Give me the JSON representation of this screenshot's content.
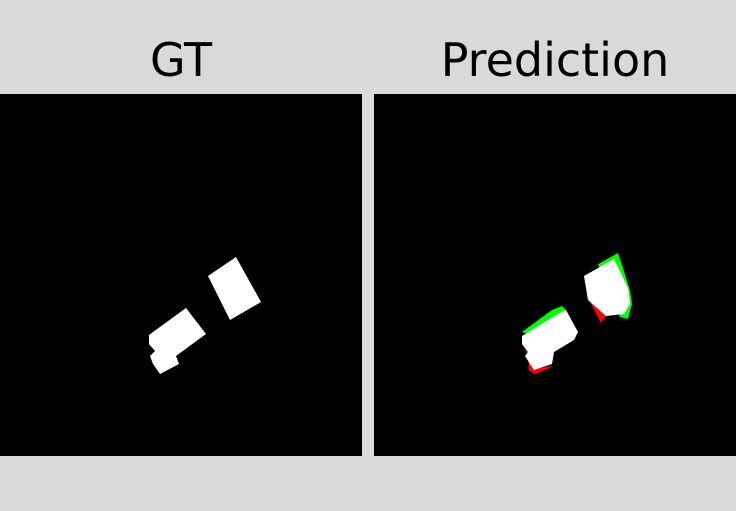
{
  "panels": {
    "gt": {
      "title": "GT"
    },
    "prediction": {
      "title": "Prediction"
    }
  },
  "colors": {
    "background": "#d9d9d9",
    "mask_background": "#000000",
    "foreground": "#ffffff",
    "false_positive": "#ff0000",
    "false_negative": "#00ff00",
    "title_text": "#000000"
  },
  "legend_meaning": {
    "white": "true-positive-region",
    "red": "predicted-only-region",
    "green": "ground-truth-only-region"
  }
}
